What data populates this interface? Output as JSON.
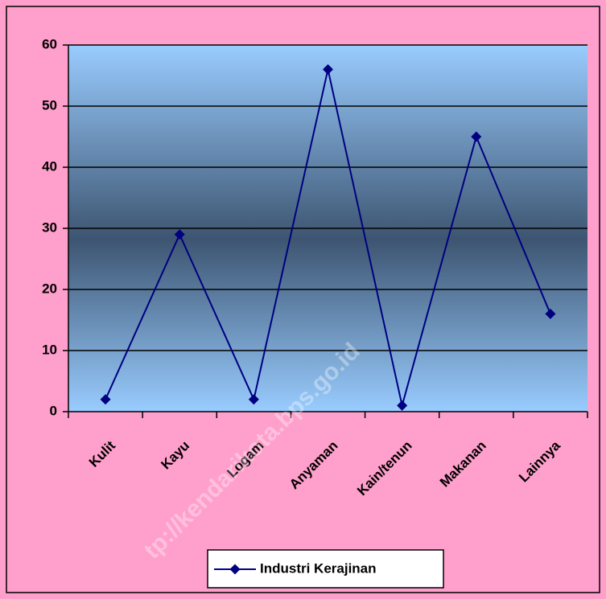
{
  "chart_data": {
    "type": "line",
    "categories": [
      "Kulit",
      "Kayu",
      "Logam",
      "Anyaman",
      "Kain/tenun",
      "Makanan",
      "Lainnya"
    ],
    "series": [
      {
        "name": "Industri Kerajinan",
        "color": "#000080",
        "values": [
          2,
          29,
          2,
          56,
          1,
          45,
          16
        ]
      }
    ],
    "ylim": [
      0,
      60
    ],
    "yticks": [
      0,
      10,
      20,
      30,
      40,
      50,
      60
    ],
    "grid": true,
    "legend": "bottom",
    "watermark": "http://kendarikota.bps.go.id"
  }
}
